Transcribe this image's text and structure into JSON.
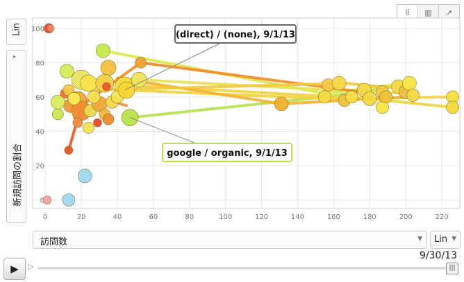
{
  "controls": {
    "y_scale_label": "Lin",
    "y_metric_label": "新規訪問の割合",
    "x_metric_label": "訪問数",
    "x_scale_label": "Lin",
    "date_label": "9/30/13",
    "play_icon": "play-icon",
    "speed_icon": "speed-icon",
    "chart_tabs": [
      "bubble",
      "bar",
      "line"
    ]
  },
  "callouts": {
    "direct": "(direct) / (none), 9/1/13",
    "google": "google / organic, 9/1/13"
  },
  "colors": {
    "grid": "#e6e6e6",
    "axis_text": "#777777",
    "google_trail": "#b5e04d",
    "direct_trail": "#f0d23c"
  },
  "chart_data": {
    "type": "scatter",
    "xlabel": "訪問数",
    "ylabel": "新規訪問の割合",
    "x_ticks": [
      0,
      20,
      40,
      60,
      80,
      100,
      120,
      140,
      160,
      180,
      200,
      220
    ],
    "y_ticks": [
      0,
      20,
      40,
      60,
      80,
      100
    ],
    "xlim": [
      -7,
      230
    ],
    "ylim": [
      -5,
      106
    ],
    "trails": [
      {
        "color": "#b5e04d",
        "points": [
          [
            47,
            48
          ],
          [
            155,
            60
          ],
          [
            200,
            67
          ]
        ]
      },
      {
        "color": "#f0d23c",
        "points": [
          [
            45,
            64
          ],
          [
            157,
            59
          ],
          [
            226,
            60
          ]
        ]
      },
      {
        "color": "#f0d23c",
        "points": [
          [
            44,
            67
          ],
          [
            180,
            59
          ],
          [
            226,
            54
          ]
        ]
      },
      {
        "color": "#d8e84a",
        "points": [
          [
            32,
            87
          ],
          [
            155,
            62
          ],
          [
            200,
            68
          ]
        ]
      },
      {
        "color": "#f4b030",
        "points": [
          [
            40,
            71
          ],
          [
            131,
            56
          ],
          [
            200,
            60
          ]
        ]
      },
      {
        "color": "#e8e050",
        "points": [
          [
            52,
            70
          ],
          [
            160,
            64
          ],
          [
            203,
            62
          ]
        ]
      },
      {
        "color": "#f08a28",
        "points": [
          [
            20,
            55
          ],
          [
            53,
            80
          ],
          [
            175,
            63
          ]
        ]
      },
      {
        "color": "#f2c840",
        "points": [
          [
            28,
            64
          ],
          [
            166,
            68
          ],
          [
            196,
            65
          ]
        ]
      },
      {
        "color": "#e55522",
        "points": [
          [
            13,
            29
          ],
          [
            20,
            55
          ],
          [
            18,
            62
          ]
        ]
      },
      {
        "color": "#ef9030",
        "points": [
          [
            16,
            48
          ],
          [
            35,
            58
          ],
          [
            45,
            55
          ]
        ]
      }
    ],
    "bubbles": [
      {
        "x": 2,
        "y": 100,
        "r": 7,
        "color": "#e8483a"
      },
      {
        "x": 3,
        "y": 100,
        "r": 5,
        "color": "#f08a60"
      },
      {
        "x": 32,
        "y": 87,
        "r": 10,
        "color": "#c6ea50"
      },
      {
        "x": 53,
        "y": 80,
        "r": 8,
        "color": "#f0a030"
      },
      {
        "x": 12,
        "y": 75,
        "r": 10,
        "color": "#d3ec55"
      },
      {
        "x": 35,
        "y": 77,
        "r": 11,
        "color": "#f5c040"
      },
      {
        "x": 20,
        "y": 70,
        "r": 14,
        "color": "#e9e360"
      },
      {
        "x": 24,
        "y": 68,
        "r": 12,
        "color": "#f9e347"
      },
      {
        "x": 33,
        "y": 68,
        "r": 13,
        "color": "#f4cd3e"
      },
      {
        "x": 44,
        "y": 66,
        "r": 14,
        "color": "#f6dd3c"
      },
      {
        "x": 52,
        "y": 70,
        "r": 11,
        "color": "#eee45a"
      },
      {
        "x": 11,
        "y": 62,
        "r": 7,
        "color": "#ef7030"
      },
      {
        "x": 13,
        "y": 64,
        "r": 8,
        "color": "#f5c84a"
      },
      {
        "x": 18,
        "y": 58,
        "r": 13,
        "color": "#f3a538"
      },
      {
        "x": 14,
        "y": 55,
        "r": 10,
        "color": "#f09a3a"
      },
      {
        "x": 20,
        "y": 52,
        "r": 14,
        "color": "#f28a30"
      },
      {
        "x": 25,
        "y": 52,
        "r": 9,
        "color": "#ecdb4c"
      },
      {
        "x": 30,
        "y": 56,
        "r": 11,
        "color": "#f0a83c"
      },
      {
        "x": 37,
        "y": 57,
        "r": 9,
        "color": "#f7d74a"
      },
      {
        "x": 40,
        "y": 60,
        "r": 9,
        "color": "#f5e24e"
      },
      {
        "x": 7,
        "y": 50,
        "r": 8,
        "color": "#c9e850"
      },
      {
        "x": 7,
        "y": 57,
        "r": 10,
        "color": "#d9ea5a"
      },
      {
        "x": 16,
        "y": 59,
        "r": 9,
        "color": "#f8ec55"
      },
      {
        "x": 27,
        "y": 60,
        "r": 9,
        "color": "#f6e050"
      },
      {
        "x": 33,
        "y": 50,
        "r": 8,
        "color": "#f1b53a"
      },
      {
        "x": 35,
        "y": 47,
        "r": 8,
        "color": "#ee8a30"
      },
      {
        "x": 18,
        "y": 45,
        "r": 7,
        "color": "#f08a40"
      },
      {
        "x": 24,
        "y": 42,
        "r": 8,
        "color": "#f7e050"
      },
      {
        "x": 29,
        "y": 45,
        "r": 6,
        "color": "#e84a2a"
      },
      {
        "x": 34,
        "y": 66,
        "r": 6,
        "color": "#e8552a"
      },
      {
        "x": 13,
        "y": 29,
        "r": 6,
        "color": "#e55522"
      },
      {
        "x": 47,
        "y": 48,
        "r": 12,
        "color": "#b8e24a"
      },
      {
        "x": 45,
        "y": 64,
        "r": 12,
        "color": "#f7d536"
      },
      {
        "x": 22,
        "y": 14,
        "r": 10,
        "color": "#9fd8f0"
      },
      {
        "x": 13,
        "y": 0,
        "r": 9,
        "color": "#9fd8f0"
      },
      {
        "x": 1,
        "y": 0,
        "r": 6,
        "color": "#f4a0a0"
      },
      {
        "x": 131,
        "y": 56,
        "r": 10,
        "color": "#f0b030"
      },
      {
        "x": 155,
        "y": 60,
        "r": 9,
        "color": "#f6d843"
      },
      {
        "x": 157,
        "y": 67,
        "r": 9,
        "color": "#f4c844"
      },
      {
        "x": 163,
        "y": 68,
        "r": 10,
        "color": "#f6d846"
      },
      {
        "x": 166,
        "y": 58,
        "r": 9,
        "color": "#efc140"
      },
      {
        "x": 170,
        "y": 60,
        "r": 9,
        "color": "#f6dc44"
      },
      {
        "x": 177,
        "y": 64,
        "r": 10,
        "color": "#f6d846"
      },
      {
        "x": 180,
        "y": 59,
        "r": 10,
        "color": "#f4d842"
      },
      {
        "x": 187,
        "y": 63,
        "r": 9,
        "color": "#f4c83e"
      },
      {
        "x": 187,
        "y": 54,
        "r": 9,
        "color": "#f6e640"
      },
      {
        "x": 189,
        "y": 60,
        "r": 9,
        "color": "#efc23d"
      },
      {
        "x": 196,
        "y": 66,
        "r": 10,
        "color": "#f6d845"
      },
      {
        "x": 200,
        "y": 63,
        "r": 10,
        "color": "#eec040"
      },
      {
        "x": 202,
        "y": 68,
        "r": 10,
        "color": "#f6e645"
      },
      {
        "x": 204,
        "y": 61,
        "r": 9,
        "color": "#f6d845"
      },
      {
        "x": 226,
        "y": 60,
        "r": 9,
        "color": "#f6e040"
      },
      {
        "x": 226,
        "y": 54,
        "r": 9,
        "color": "#f6d83e"
      }
    ],
    "callouts": [
      {
        "key": "direct",
        "target": [
          44,
          64
        ],
        "text": "(direct) / (none), 9/1/13"
      },
      {
        "key": "google",
        "target": [
          47,
          48
        ],
        "text": "google / organic, 9/1/13"
      }
    ]
  }
}
